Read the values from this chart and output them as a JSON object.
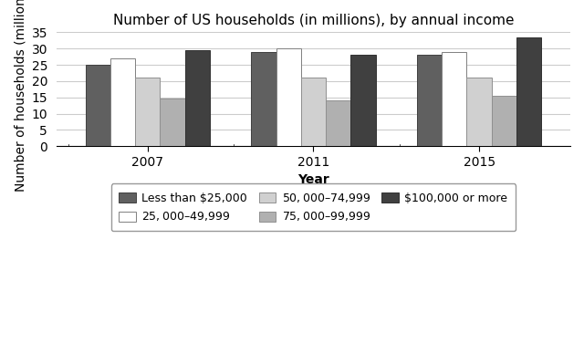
{
  "title": "Number of US households (in millions), by annual income",
  "xlabel": "Year",
  "ylabel": "Number of households (millions)",
  "years": [
    "2007",
    "2011",
    "2015"
  ],
  "categories": [
    "Less than $25,000",
    "$25,000–$49,999",
    "$50,000–$74,999",
    "$75,000–$99,999",
    "$100,000 or more"
  ],
  "values": {
    "Less than $25,000": [
      25.0,
      29.0,
      28.0
    ],
    "$25,000–$49,999": [
      27.0,
      30.0,
      29.0
    ],
    "$50,000–$74,999": [
      21.0,
      21.0,
      21.0
    ],
    "$75,000–$99,999": [
      14.5,
      14.0,
      15.5
    ],
    "$100,000 or more": [
      29.5,
      28.0,
      33.5
    ]
  },
  "colors": {
    "Less than $25,000": "#606060",
    "$25,000–$49,999": "#ffffff",
    "$50,000–$74,999": "#d0d0d0",
    "$75,000–$99,999": "#b0b0b0",
    "$100,000 or more": "#404040"
  },
  "edgecolors": {
    "Less than $25,000": "#404040",
    "$25,000–$49,999": "#808080",
    "$50,000–$74,999": "#909090",
    "$75,000–$99,999": "#909090",
    "$100,000 or more": "#303030"
  },
  "ylim": [
    0,
    35
  ],
  "yticks": [
    0,
    5,
    10,
    15,
    20,
    25,
    30,
    35
  ],
  "bar_width": 0.15,
  "group_centers": [
    1.0,
    2.0,
    3.0
  ],
  "background_color": "#ffffff",
  "grid_color": "#cccccc",
  "title_fontsize": 11,
  "label_fontsize": 10,
  "tick_fontsize": 10,
  "legend_fontsize": 9
}
